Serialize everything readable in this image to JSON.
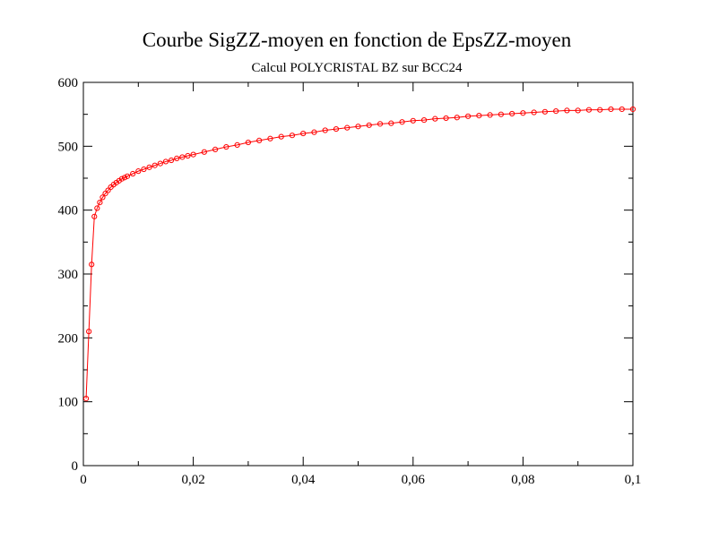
{
  "chart_data": {
    "type": "scatter",
    "title": "Courbe SigZZ-moyen en fonction de EpsZZ-moyen",
    "subtitle": "Calcul POLYCRISTAL BZ sur BCC24",
    "xlabel": "",
    "ylabel": "",
    "xlim": [
      0,
      0.1
    ],
    "ylim": [
      0,
      600
    ],
    "x_ticks": [
      0,
      0.02,
      0.04,
      0.06,
      0.08,
      0.1
    ],
    "x_tick_labels": [
      "0",
      "0,02",
      "0,04",
      "0,06",
      "0,08",
      "0,1"
    ],
    "y_ticks": [
      0,
      100,
      200,
      300,
      400,
      500,
      600
    ],
    "y_tick_labels": [
      "0",
      "100",
      "200",
      "300",
      "400",
      "500",
      "600"
    ],
    "grid": false,
    "legend": "none",
    "series": [
      {
        "color": "#ff0000",
        "marker": "circle",
        "x": [
          0.0005,
          0.001,
          0.0015,
          0.002,
          0.0025,
          0.003,
          0.0035,
          0.004,
          0.0045,
          0.005,
          0.0055,
          0.006,
          0.0065,
          0.007,
          0.0075,
          0.008,
          0.009,
          0.01,
          0.011,
          0.012,
          0.013,
          0.014,
          0.015,
          0.016,
          0.017,
          0.018,
          0.019,
          0.02,
          0.022,
          0.024,
          0.026,
          0.028,
          0.03,
          0.032,
          0.034,
          0.036,
          0.038,
          0.04,
          0.042,
          0.044,
          0.046,
          0.048,
          0.05,
          0.052,
          0.054,
          0.056,
          0.058,
          0.06,
          0.062,
          0.064,
          0.066,
          0.068,
          0.07,
          0.072,
          0.074,
          0.076,
          0.078,
          0.08,
          0.082,
          0.084,
          0.086,
          0.088,
          0.09,
          0.092,
          0.094,
          0.096,
          0.098,
          0.1
        ],
        "y": [
          105,
          210,
          315,
          390,
          403,
          412,
          420,
          426,
          431,
          436,
          440,
          443,
          446,
          449,
          451,
          453,
          457,
          461,
          464,
          467,
          470,
          473,
          476,
          478,
          481,
          483,
          485,
          487,
          491,
          495,
          499,
          502,
          506,
          509,
          512,
          515,
          517,
          520,
          522,
          525,
          527,
          529,
          531,
          533,
          535,
          536,
          538,
          540,
          541,
          543,
          544,
          545,
          547,
          548,
          549,
          550,
          551,
          552,
          553,
          554,
          555,
          556,
          556,
          557,
          557,
          558,
          558,
          558
        ]
      }
    ]
  }
}
